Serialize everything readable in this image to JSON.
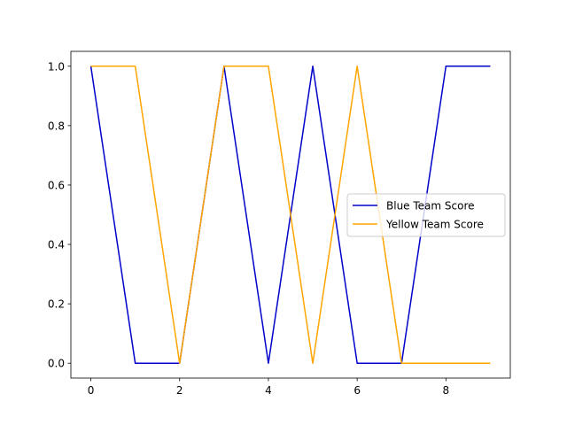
{
  "chart_data": {
    "type": "line",
    "x": [
      0,
      1,
      2,
      3,
      4,
      5,
      6,
      7,
      8,
      9
    ],
    "series": [
      {
        "name": "Blue Team Score",
        "color": "#0000cc",
        "values": [
          1,
          0,
          0,
          1,
          0,
          1,
          0,
          0,
          1,
          1
        ]
      },
      {
        "name": "Yellow Team Score",
        "color": "#ffa500",
        "values": [
          1,
          1,
          0,
          1,
          1,
          0,
          1,
          0,
          0,
          0
        ]
      }
    ],
    "title": "",
    "xlabel": "",
    "ylabel": "",
    "xlim": [
      -0.45,
      9.45
    ],
    "ylim": [
      -0.05,
      1.05
    ],
    "xticks": [
      0,
      2,
      4,
      6,
      8
    ],
    "xtick_labels": [
      "0",
      "2",
      "4",
      "6",
      "8"
    ],
    "yticks": [
      0,
      0.2,
      0.4,
      0.6,
      0.8,
      1.0
    ],
    "ytick_labels": [
      "0.0",
      "0.2",
      "0.4",
      "0.6",
      "0.8",
      "1.0"
    ],
    "grid": false,
    "legend_position": "center-right"
  }
}
